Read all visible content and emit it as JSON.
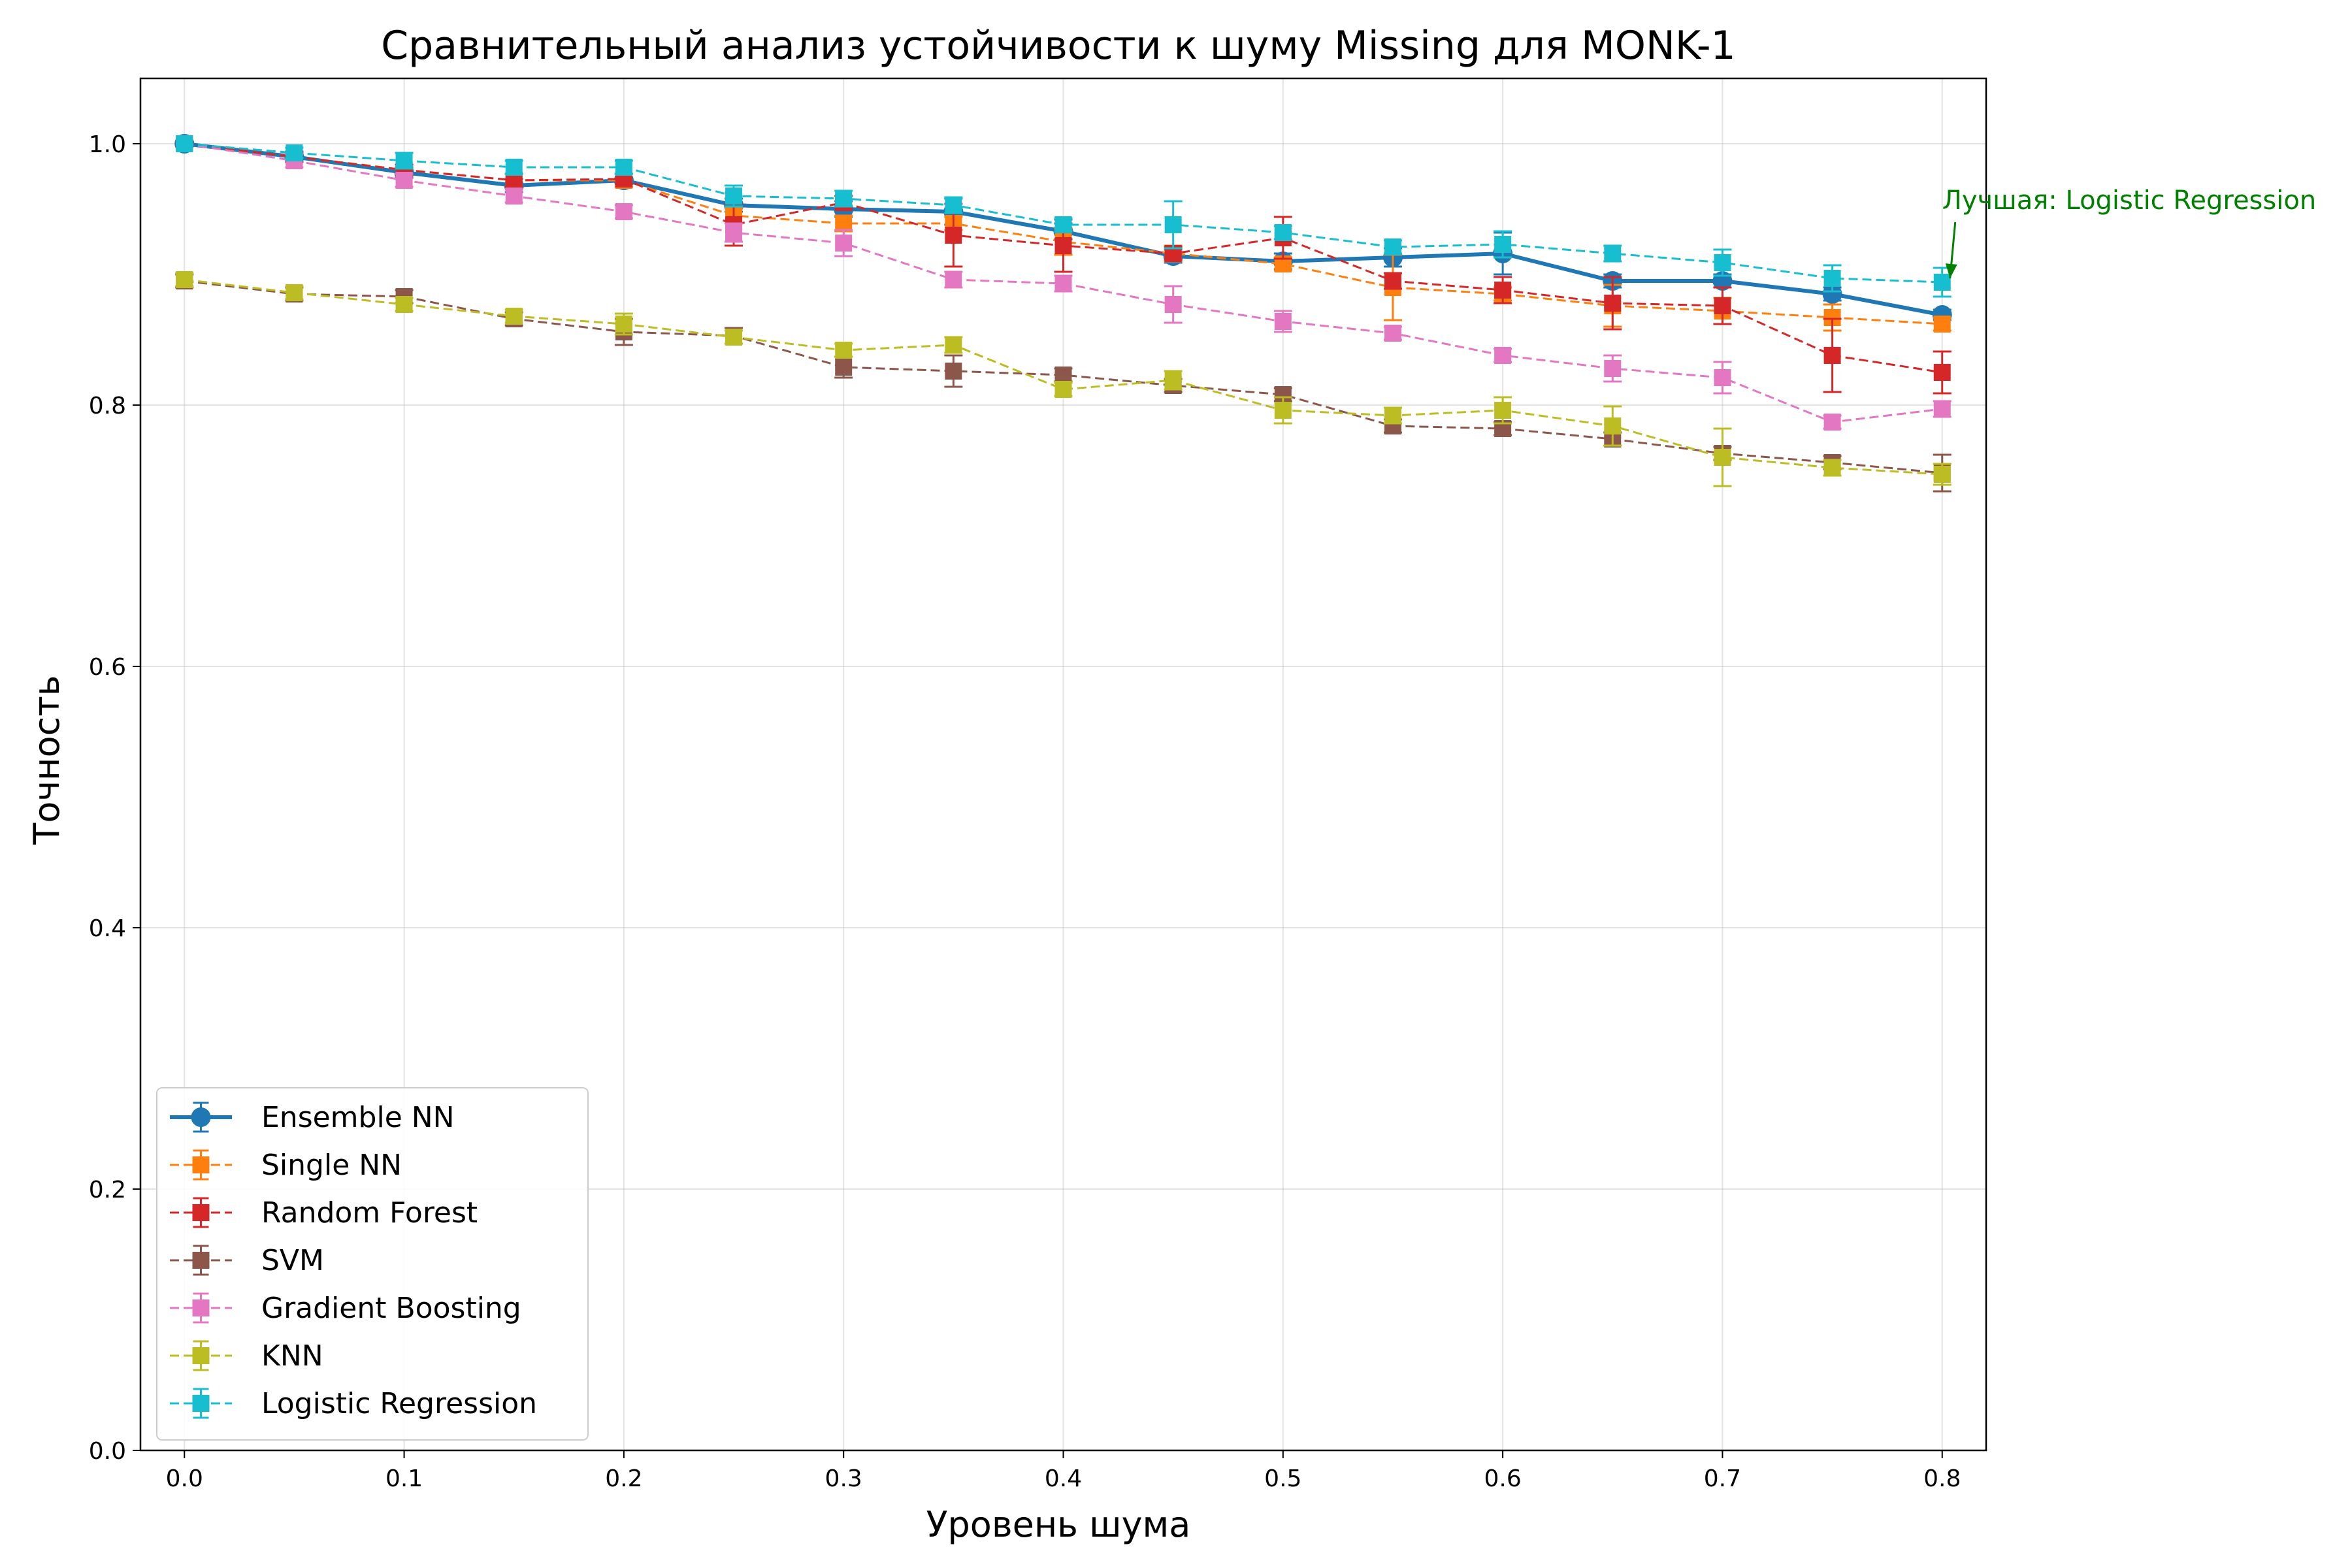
{
  "chart_data": {
    "type": "line",
    "title": "Сравнительный анализ устойчивости к шуму Missing для MONK-1",
    "xlabel": "Уровень шума",
    "ylabel": "Точность",
    "xlim": [
      -0.02,
      0.82
    ],
    "ylim": [
      0.0,
      1.05
    ],
    "x_ticks": [
      "0.0",
      "0.1",
      "0.2",
      "0.3",
      "0.4",
      "0.5",
      "0.6",
      "0.7",
      "0.8"
    ],
    "y_ticks": [
      "0.0",
      "0.2",
      "0.4",
      "0.6",
      "0.8",
      "1.0"
    ],
    "grid": true,
    "legend_position": "bottom-left",
    "x": [
      0.0,
      0.05,
      0.1,
      0.15,
      0.2,
      0.25,
      0.3,
      0.35,
      0.4,
      0.45,
      0.5,
      0.55,
      0.6,
      0.65,
      0.7,
      0.75,
      0.8
    ],
    "series": [
      {
        "name": "Ensemble NN",
        "color": "#1f77b4",
        "marker": "circle",
        "line": "solid",
        "values": [
          1.0,
          0.99,
          0.978,
          0.968,
          0.972,
          0.953,
          0.95,
          0.948,
          0.933,
          0.914,
          0.91,
          0.913,
          0.916,
          0.895,
          0.895,
          0.885,
          0.869
        ],
        "errors": [
          0.0,
          0.003,
          0.004,
          0.005,
          0.005,
          0.005,
          0.006,
          0.01,
          0.006,
          0.005,
          0.006,
          0.007,
          0.016,
          0.005,
          0.005,
          0.005,
          0.004
        ]
      },
      {
        "name": "Single NN",
        "color": "#ff7f0e",
        "marker": "square",
        "line": "dashed",
        "values": [
          1.0,
          0.99,
          0.98,
          0.972,
          0.972,
          0.945,
          0.939,
          0.939,
          0.925,
          0.916,
          0.908,
          0.89,
          0.885,
          0.876,
          0.872,
          0.867,
          0.862
        ],
        "errors": [
          0.0,
          0.004,
          0.004,
          0.005,
          0.005,
          0.006,
          0.006,
          0.005,
          0.01,
          0.006,
          0.005,
          0.025,
          0.005,
          0.016,
          0.01,
          0.01,
          0.005
        ]
      },
      {
        "name": "Random Forest",
        "color": "#d62728",
        "marker": "square",
        "line": "dashed",
        "values": [
          1.0,
          0.99,
          0.98,
          0.972,
          0.973,
          0.938,
          0.955,
          0.93,
          0.922,
          0.916,
          0.928,
          0.895,
          0.888,
          0.878,
          0.876,
          0.838,
          0.825
        ],
        "errors": [
          0.0,
          0.004,
          0.004,
          0.005,
          0.004,
          0.016,
          0.005,
          0.024,
          0.02,
          0.005,
          0.016,
          0.006,
          0.01,
          0.02,
          0.014,
          0.028,
          0.016
        ]
      },
      {
        "name": "SVM",
        "color": "#8c564b",
        "marker": "square",
        "line": "dashed",
        "values": [
          0.895,
          0.885,
          0.883,
          0.866,
          0.856,
          0.853,
          0.829,
          0.826,
          0.823,
          0.815,
          0.808,
          0.784,
          0.782,
          0.774,
          0.763,
          0.756,
          0.748
        ],
        "errors": [
          0.005,
          0.005,
          0.005,
          0.005,
          0.01,
          0.006,
          0.008,
          0.012,
          0.005,
          0.005,
          0.005,
          0.005,
          0.005,
          0.005,
          0.005,
          0.005,
          0.014
        ]
      },
      {
        "name": "Gradient Boosting",
        "color": "#e377c2",
        "marker": "square",
        "line": "dashed",
        "values": [
          1.0,
          0.987,
          0.972,
          0.96,
          0.948,
          0.932,
          0.924,
          0.896,
          0.893,
          0.877,
          0.864,
          0.855,
          0.838,
          0.828,
          0.821,
          0.787,
          0.797
        ],
        "errors": [
          0.0,
          0.005,
          0.005,
          0.005,
          0.005,
          0.007,
          0.01,
          0.006,
          0.006,
          0.014,
          0.008,
          0.005,
          0.005,
          0.01,
          0.012,
          0.005,
          0.006
        ]
      },
      {
        "name": "KNN",
        "color": "#bcbd22",
        "marker": "square",
        "line": "dashed",
        "values": [
          0.896,
          0.886,
          0.877,
          0.868,
          0.862,
          0.852,
          0.842,
          0.846,
          0.812,
          0.819,
          0.796,
          0.792,
          0.796,
          0.784,
          0.76,
          0.752,
          0.747
        ],
        "errors": [
          0.005,
          0.005,
          0.005,
          0.005,
          0.008,
          0.005,
          0.005,
          0.006,
          0.005,
          0.007,
          0.01,
          0.006,
          0.01,
          0.015,
          0.022,
          0.006,
          0.008
        ]
      },
      {
        "name": "Logistic Regression",
        "color": "#17becf",
        "marker": "square",
        "line": "dashed",
        "values": [
          1.0,
          0.993,
          0.987,
          0.982,
          0.982,
          0.96,
          0.958,
          0.953,
          0.938,
          0.938,
          0.932,
          0.921,
          0.923,
          0.916,
          0.909,
          0.897,
          0.894
        ],
        "errors": [
          0.0,
          0.004,
          0.006,
          0.005,
          0.005,
          0.008,
          0.006,
          0.006,
          0.005,
          0.018,
          0.005,
          0.005,
          0.01,
          0.006,
          0.01,
          0.01,
          0.011
        ]
      }
    ],
    "annotation": {
      "text": "Лучшая: Logistic Regression",
      "color": "#008000",
      "target_x": 0.8,
      "target_y": 0.894,
      "text_x": 0.8,
      "text_y": 0.944
    }
  }
}
